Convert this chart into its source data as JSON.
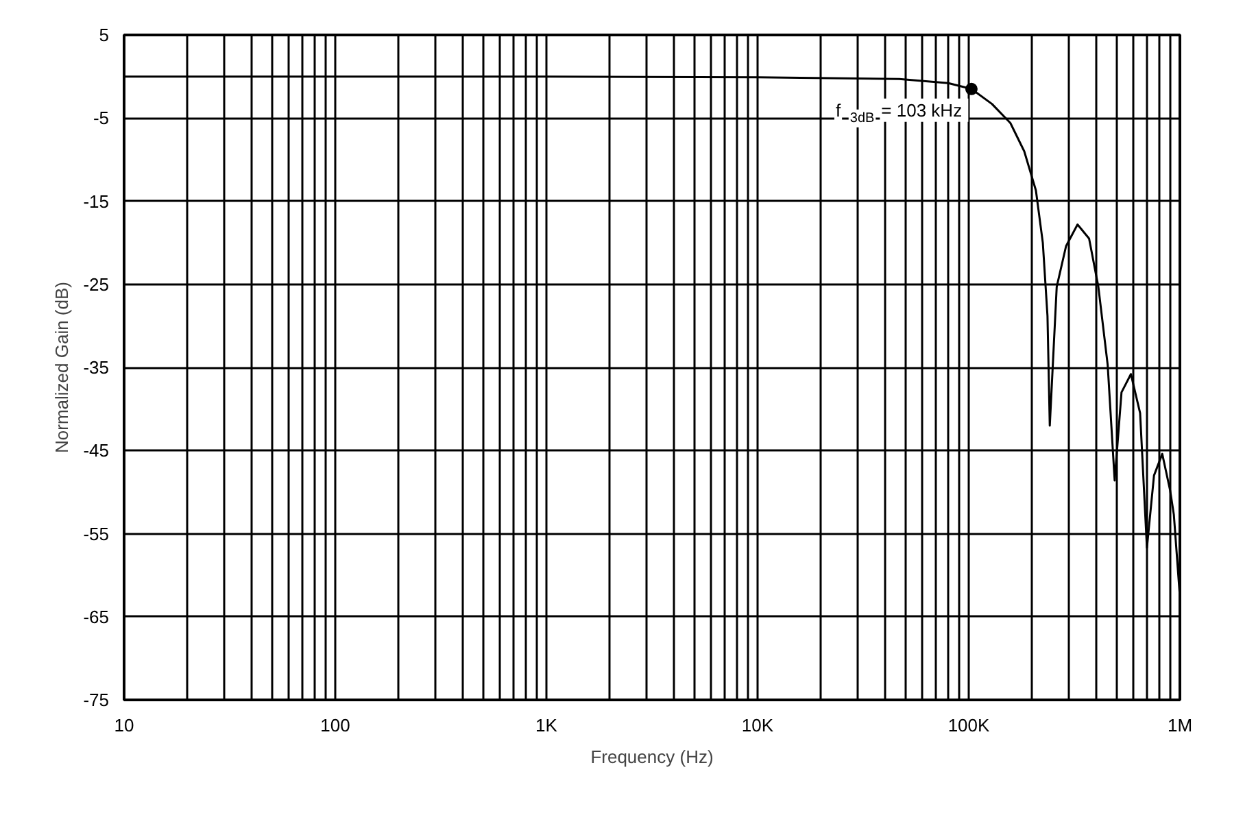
{
  "chart_data": {
    "type": "line",
    "xlabel": "Frequency (Hz)",
    "ylabel": "Normalized Gain (dB)",
    "log": "x",
    "grid": true,
    "line_style": "solid",
    "marker": "none",
    "xlim": [
      10,
      1000000
    ],
    "ylim": [
      -75,
      5
    ],
    "xticks": [
      {
        "value": 10,
        "label": "10"
      },
      {
        "value": 20,
        "label": null
      },
      {
        "value": 30,
        "label": null
      },
      {
        "value": 40,
        "label": null
      },
      {
        "value": 50,
        "label": null
      },
      {
        "value": 60,
        "label": null
      },
      {
        "value": 70,
        "label": null
      },
      {
        "value": 80,
        "label": null
      },
      {
        "value": 90,
        "label": null
      },
      {
        "value": 100,
        "label": "100"
      },
      {
        "value": 200,
        "label": null
      },
      {
        "value": 300,
        "label": null
      },
      {
        "value": 400,
        "label": null
      },
      {
        "value": 500,
        "label": null
      },
      {
        "value": 600,
        "label": null
      },
      {
        "value": 700,
        "label": null
      },
      {
        "value": 800,
        "label": null
      },
      {
        "value": 900,
        "label": null
      },
      {
        "value": 1000,
        "label": "1K"
      },
      {
        "value": 2000,
        "label": null
      },
      {
        "value": 3000,
        "label": null
      },
      {
        "value": 4000,
        "label": null
      },
      {
        "value": 5000,
        "label": null
      },
      {
        "value": 6000,
        "label": null
      },
      {
        "value": 7000,
        "label": null
      },
      {
        "value": 8000,
        "label": null
      },
      {
        "value": 9000,
        "label": null
      },
      {
        "value": 10000,
        "label": "10K"
      },
      {
        "value": 20000,
        "label": null
      },
      {
        "value": 30000,
        "label": null
      },
      {
        "value": 40000,
        "label": null
      },
      {
        "value": 50000,
        "label": null
      },
      {
        "value": 60000,
        "label": null
      },
      {
        "value": 70000,
        "label": null
      },
      {
        "value": 80000,
        "label": null
      },
      {
        "value": 90000,
        "label": null
      },
      {
        "value": 100000,
        "label": "100K"
      },
      {
        "value": 200000,
        "label": null
      },
      {
        "value": 300000,
        "label": null
      },
      {
        "value": 400000,
        "label": null
      },
      {
        "value": 500000,
        "label": null
      },
      {
        "value": 600000,
        "label": null
      },
      {
        "value": 700000,
        "label": null
      },
      {
        "value": 800000,
        "label": null
      },
      {
        "value": 900000,
        "label": null
      },
      {
        "value": 1000000,
        "label": "1M"
      }
    ],
    "yticks": [
      5,
      -5,
      -15,
      -25,
      -35,
      -45,
      -55,
      -65,
      -75
    ],
    "annotations": [
      {
        "text": "f$_{3dB}$ = 103 kHz",
        "x": 103000,
        "y": -1.5
      }
    ],
    "series": [
      {
        "color": "#000000",
        "x": [
          10,
          1000,
          10000,
          46900,
          80000,
          103000,
          128800,
          157500,
          183200,
          208000,
          224300,
          236000,
          242000,
          261000,
          289000,
          327500,
          371500,
          411000,
          455000,
          491000,
          529000,
          586000,
          648000,
          698000,
          754000,
          825000,
          899000,
          936000,
          996000
        ],
        "values": [
          0,
          0,
          -0.1,
          -0.3,
          -0.8,
          -1.5,
          -3.3,
          -5.6,
          -9,
          -13.7,
          -20,
          -28.8,
          -42,
          -25.3,
          -20.4,
          -17.8,
          -19.5,
          -25.3,
          -34.7,
          -48.6,
          -38,
          -35.8,
          -40.5,
          -56.7,
          -48,
          -45.4,
          -49.8,
          -52.7,
          -62
        ]
      }
    ]
  }
}
